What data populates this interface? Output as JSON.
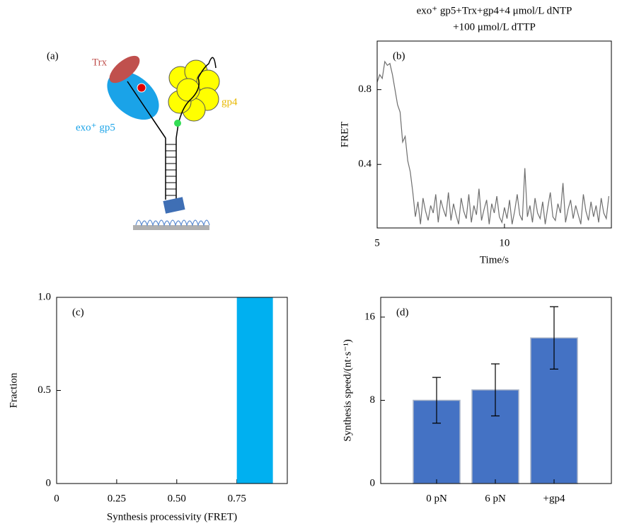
{
  "diagram": {
    "label": "(a)",
    "protein_1": "Trx",
    "protein_2": "exo⁺ gp5",
    "protein_3": "gp4"
  },
  "chart_data": [
    {
      "type": "line",
      "label": "(b)",
      "title": [
        "exo⁺ gp5+Trx+gp4+4 μmol/L dNTP",
        "+100 μmol/L dTTP"
      ],
      "xlabel": "Time/s",
      "ylabel": "FRET",
      "color": "#6e6e6e",
      "x": [
        5.0,
        5.1,
        5.2,
        5.3,
        5.4,
        5.5,
        5.6,
        5.7,
        5.8,
        5.9,
        6.0,
        6.1,
        6.2,
        6.3,
        6.4,
        6.5,
        6.6,
        6.7,
        6.8,
        6.9,
        7.0,
        7.1,
        7.2,
        7.3,
        7.4,
        7.5,
        7.6,
        7.7,
        7.8,
        7.9,
        8.0,
        8.1,
        8.2,
        8.3,
        8.4,
        8.5,
        8.6,
        8.7,
        8.8,
        8.9,
        9.0,
        9.1,
        9.2,
        9.3,
        9.4,
        9.5,
        9.6,
        9.7,
        9.8,
        9.9,
        10.0,
        10.1,
        10.2,
        10.3,
        10.4,
        10.5,
        10.6,
        10.7,
        10.8,
        10.9,
        11.0,
        11.1,
        11.2,
        11.3,
        11.4,
        11.5,
        11.6,
        11.7,
        11.8,
        11.9,
        12.0,
        12.1,
        12.2,
        12.3,
        12.4,
        12.5,
        12.6,
        12.7,
        12.8,
        12.9,
        13.0,
        13.1,
        13.2,
        13.3,
        13.4,
        13.5,
        13.6,
        13.7,
        13.8,
        13.9,
        14.0,
        14.1
      ],
      "values": [
        0.84,
        0.88,
        0.86,
        0.95,
        0.93,
        0.94,
        0.88,
        0.8,
        0.72,
        0.68,
        0.52,
        0.55,
        0.42,
        0.36,
        0.25,
        0.12,
        0.2,
        0.08,
        0.22,
        0.15,
        0.1,
        0.18,
        0.14,
        0.24,
        0.09,
        0.21,
        0.16,
        0.12,
        0.25,
        0.1,
        0.19,
        0.13,
        0.08,
        0.22,
        0.15,
        0.11,
        0.24,
        0.09,
        0.18,
        0.13,
        0.27,
        0.1,
        0.16,
        0.21,
        0.08,
        0.19,
        0.14,
        0.23,
        0.12,
        0.09,
        0.17,
        0.11,
        0.21,
        0.08,
        0.15,
        0.24,
        0.13,
        0.1,
        0.38,
        0.12,
        0.18,
        0.09,
        0.22,
        0.14,
        0.11,
        0.2,
        0.08,
        0.17,
        0.25,
        0.12,
        0.1,
        0.19,
        0.14,
        0.3,
        0.09,
        0.16,
        0.21,
        0.11,
        0.18,
        0.13,
        0.08,
        0.24,
        0.15,
        0.1,
        0.2,
        0.12,
        0.18,
        0.09,
        0.22,
        0.14,
        0.11,
        0.23
      ],
      "xlim": [
        5,
        14.2
      ],
      "xticks": [
        5,
        10
      ],
      "ylim": [
        0.06,
        1.06
      ],
      "yticks": [
        0.4,
        0.8
      ]
    },
    {
      "type": "histogram",
      "label": "(c)",
      "xlabel": "Synthesis processivity (FRET)",
      "ylabel": "Fraction",
      "color": "#00b0f0",
      "bins": [
        0.75,
        0.9
      ],
      "values": [
        1
      ],
      "xlim": [
        0,
        0.96
      ],
      "xticks": [
        0,
        0.25,
        {
          "value": 0.5,
          "label": "0.50"
        },
        0.75
      ],
      "ylim": [
        0,
        1
      ],
      "yticks": [
        0,
        0.5,
        {
          "value": 1,
          "label": "1.0"
        }
      ]
    },
    {
      "type": "bar",
      "label": "(d)",
      "ylabel": "Synthesis speed/(nt·s⁻¹)",
      "color": "#4472c4",
      "categories": [
        "0 pN",
        "6 pN",
        "+gp4"
      ],
      "values": [
        8,
        9,
        14
      ],
      "errors": [
        2.2,
        2.5,
        3
      ],
      "ylim": [
        0,
        17.9
      ],
      "yticks": [
        0,
        8,
        16
      ]
    }
  ]
}
